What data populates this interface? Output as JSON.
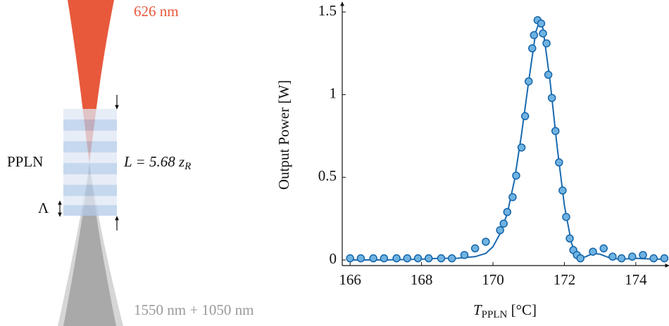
{
  "diagram": {
    "top_beam_label": "626 nm",
    "crystal_label": "PPLN",
    "length_label_main": "L = 5.68 z",
    "length_label_sub": "R",
    "period_label": "Λ",
    "bottom_beam_label": "1550 nm + 1050 nm"
  },
  "chart_data": {
    "type": "scatter",
    "x_label_main": "T",
    "x_label_sub": "PPLN",
    "x_label_unit": " [°C]",
    "y_label": "Output Power [W]",
    "xlim": [
      165.78,
      174.89
    ],
    "ylim": [
      -0.034,
      1.551
    ],
    "xticks": [
      166,
      168,
      170,
      172,
      174
    ],
    "yticks": [
      0,
      0.5,
      1,
      1.5
    ],
    "series": [
      {
        "style": "line",
        "color": "#1a6ab0",
        "x": [
          166,
          167,
          168,
          168.5,
          169,
          169.5,
          169.8,
          170,
          170.2,
          170.4,
          170.6,
          170.8,
          171.0,
          171.2,
          171.3,
          171.4,
          171.6,
          171.8,
          172.0,
          172.2,
          172.4,
          172.6,
          172.8,
          173.0,
          173.3,
          173.6,
          174,
          174.5,
          174.89
        ],
        "values": [
          0,
          0,
          0.005,
          0.01,
          0.01,
          0.02,
          0.04,
          0.08,
          0.16,
          0.28,
          0.48,
          0.76,
          1.08,
          1.38,
          1.44,
          1.4,
          1.08,
          0.68,
          0.33,
          0.1,
          0.01,
          0.02,
          0.04,
          0.035,
          0.01,
          0.005,
          0.01,
          0.005,
          0.005
        ]
      },
      {
        "style": "markers",
        "color": "#6fb3e2",
        "edge": "#1565a8",
        "x": [
          166.0,
          166.3,
          166.65,
          166.95,
          167.3,
          167.6,
          167.9,
          168.2,
          168.55,
          168.85,
          169.2,
          169.5,
          169.8,
          170.2,
          170.3,
          170.4,
          170.55,
          170.65,
          170.8,
          170.9,
          171.0,
          171.1,
          171.15,
          171.25,
          171.35,
          171.4,
          171.5,
          171.55,
          171.65,
          171.75,
          171.85,
          171.95,
          172.05,
          172.15,
          172.25,
          172.35,
          172.45,
          172.8,
          173.1,
          173.35,
          173.6,
          173.9,
          174.2,
          174.5,
          174.8
        ],
        "values": [
          0.01,
          0.01,
          0.01,
          0.01,
          0.01,
          0.01,
          0.01,
          0.01,
          0.01,
          0.01,
          0.03,
          0.07,
          0.11,
          0.18,
          0.22,
          0.29,
          0.38,
          0.51,
          0.68,
          0.87,
          1.08,
          1.28,
          1.36,
          1.45,
          1.43,
          1.37,
          1.31,
          1.12,
          0.98,
          0.78,
          0.59,
          0.42,
          0.26,
          0.13,
          0.06,
          0.03,
          0.01,
          0.05,
          0.07,
          0.02,
          0.01,
          0.02,
          0.03,
          0.01,
          0.01
        ]
      }
    ]
  }
}
